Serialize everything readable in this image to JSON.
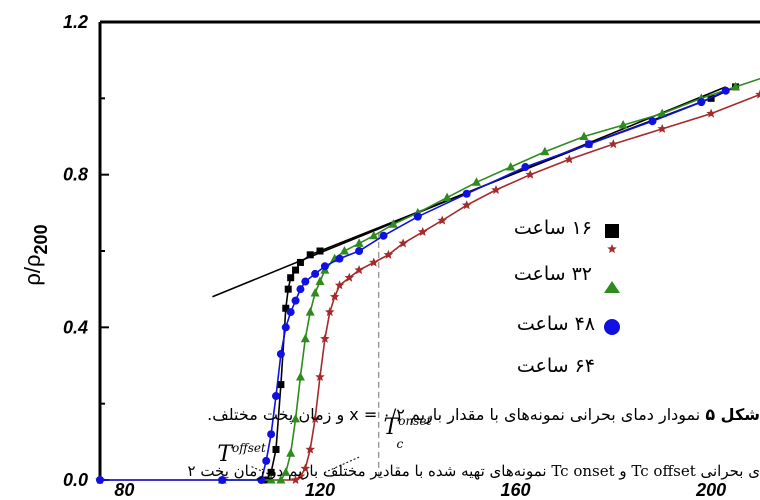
{
  "chart_data": {
    "type": "line",
    "xlabel": "",
    "ylabel": "ρ/ρ",
    "ylabel_sub": "200",
    "xlim": [
      75,
      210
    ],
    "ylim": [
      0.0,
      1.2
    ],
    "x_ticks": [
      "80",
      "120",
      "160",
      "200"
    ],
    "y_ticks": [
      "0.0",
      "0.4",
      "0.8",
      "1.2"
    ],
    "series": [
      {
        "name": "۱۶ ساعت",
        "color": "#000000",
        "marker": "square",
        "x": [
          109,
          110,
          111,
          112,
          113,
          113.5,
          114,
          115,
          116,
          118,
          120,
          175,
          200,
          205
        ],
        "y": [
          0.0,
          0.02,
          0.08,
          0.25,
          0.45,
          0.5,
          0.53,
          0.55,
          0.57,
          0.59,
          0.6,
          0.88,
          1.0,
          1.03
        ]
      },
      {
        "name": "۳۲ ساعت",
        "color": "#a52a2a",
        "marker": "star",
        "x": [
          75,
          100,
          115,
          116,
          117,
          118,
          119,
          120,
          121,
          122,
          123,
          124,
          126,
          128,
          131,
          134,
          137,
          141,
          145,
          150,
          156,
          163,
          171,
          180,
          190,
          200,
          210
        ],
        "y": [
          0.0,
          0.0,
          0.0,
          0.01,
          0.03,
          0.08,
          0.16,
          0.27,
          0.37,
          0.44,
          0.48,
          0.51,
          0.53,
          0.55,
          0.57,
          0.59,
          0.62,
          0.65,
          0.68,
          0.72,
          0.76,
          0.8,
          0.84,
          0.88,
          0.92,
          0.96,
          1.01
        ]
      },
      {
        "name": "۴۸ ساعت",
        "color": "#2e8b1e",
        "marker": "triangle",
        "x": [
          100,
          110,
          112,
          113,
          114,
          115,
          116,
          117,
          118,
          119,
          120,
          121,
          123,
          125,
          128,
          131,
          135,
          140,
          146,
          152,
          159,
          166,
          174,
          182,
          190,
          198,
          205,
          212
        ],
        "y": [
          0.0,
          0.0,
          0.0,
          0.02,
          0.07,
          0.16,
          0.27,
          0.37,
          0.44,
          0.49,
          0.52,
          0.55,
          0.58,
          0.6,
          0.62,
          0.64,
          0.67,
          0.7,
          0.74,
          0.78,
          0.82,
          0.86,
          0.9,
          0.93,
          0.96,
          1.0,
          1.03,
          1.06
        ]
      },
      {
        "name": "۶۴ ساعت",
        "color": "#1010e0",
        "marker": "circle",
        "x": [
          75,
          100,
          108,
          109,
          110,
          111,
          112,
          113,
          114,
          115,
          116,
          117,
          119,
          121,
          124,
          128,
          133,
          140,
          150,
          162,
          175,
          188,
          198,
          203
        ],
        "y": [
          0.0,
          0.0,
          0.0,
          0.05,
          0.12,
          0.22,
          0.33,
          0.4,
          0.44,
          0.47,
          0.5,
          0.52,
          0.54,
          0.56,
          0.58,
          0.6,
          0.64,
          0.69,
          0.75,
          0.82,
          0.88,
          0.94,
          0.99,
          1.02
        ]
      }
    ],
    "tangent_line": {
      "x": [
        98,
        203
      ],
      "y": [
        0.48,
        1.03
      ],
      "color": "#000000"
    },
    "onset_line": {
      "x": 132,
      "y_top": 0.65,
      "color": "#999999"
    },
    "annotations": [
      {
        "text": "T",
        "sup": "offset",
        "x": 99,
        "y": 0.05
      },
      {
        "text": "T",
        "sup": "onset",
        "sub": "c",
        "x": 133,
        "y": 0.12
      }
    ]
  },
  "legend": {
    "placement": "right",
    "labels": [
      "۱۶ ساعت",
      "۳۲ ساعت",
      "۴۸ ساعت",
      "۶۴ ساعت"
    ],
    "marker_colors": [
      "#000000",
      "#a52a2a",
      "#2e8b1e",
      "#1010e0"
    ]
  },
  "caption": {
    "bold": "شکل ۵",
    "text": " نمودار دمای بحرانی نمونه‌های با مقدار باریم ۰/۲ = x و زمان پخت مختلف."
  },
  "caption2": {
    "text": "ی بحرانی Tc offset و Tc onset نمونه‌های تهیه شده با مقادیر مختلف باریم در زمان پخت ۲"
  }
}
